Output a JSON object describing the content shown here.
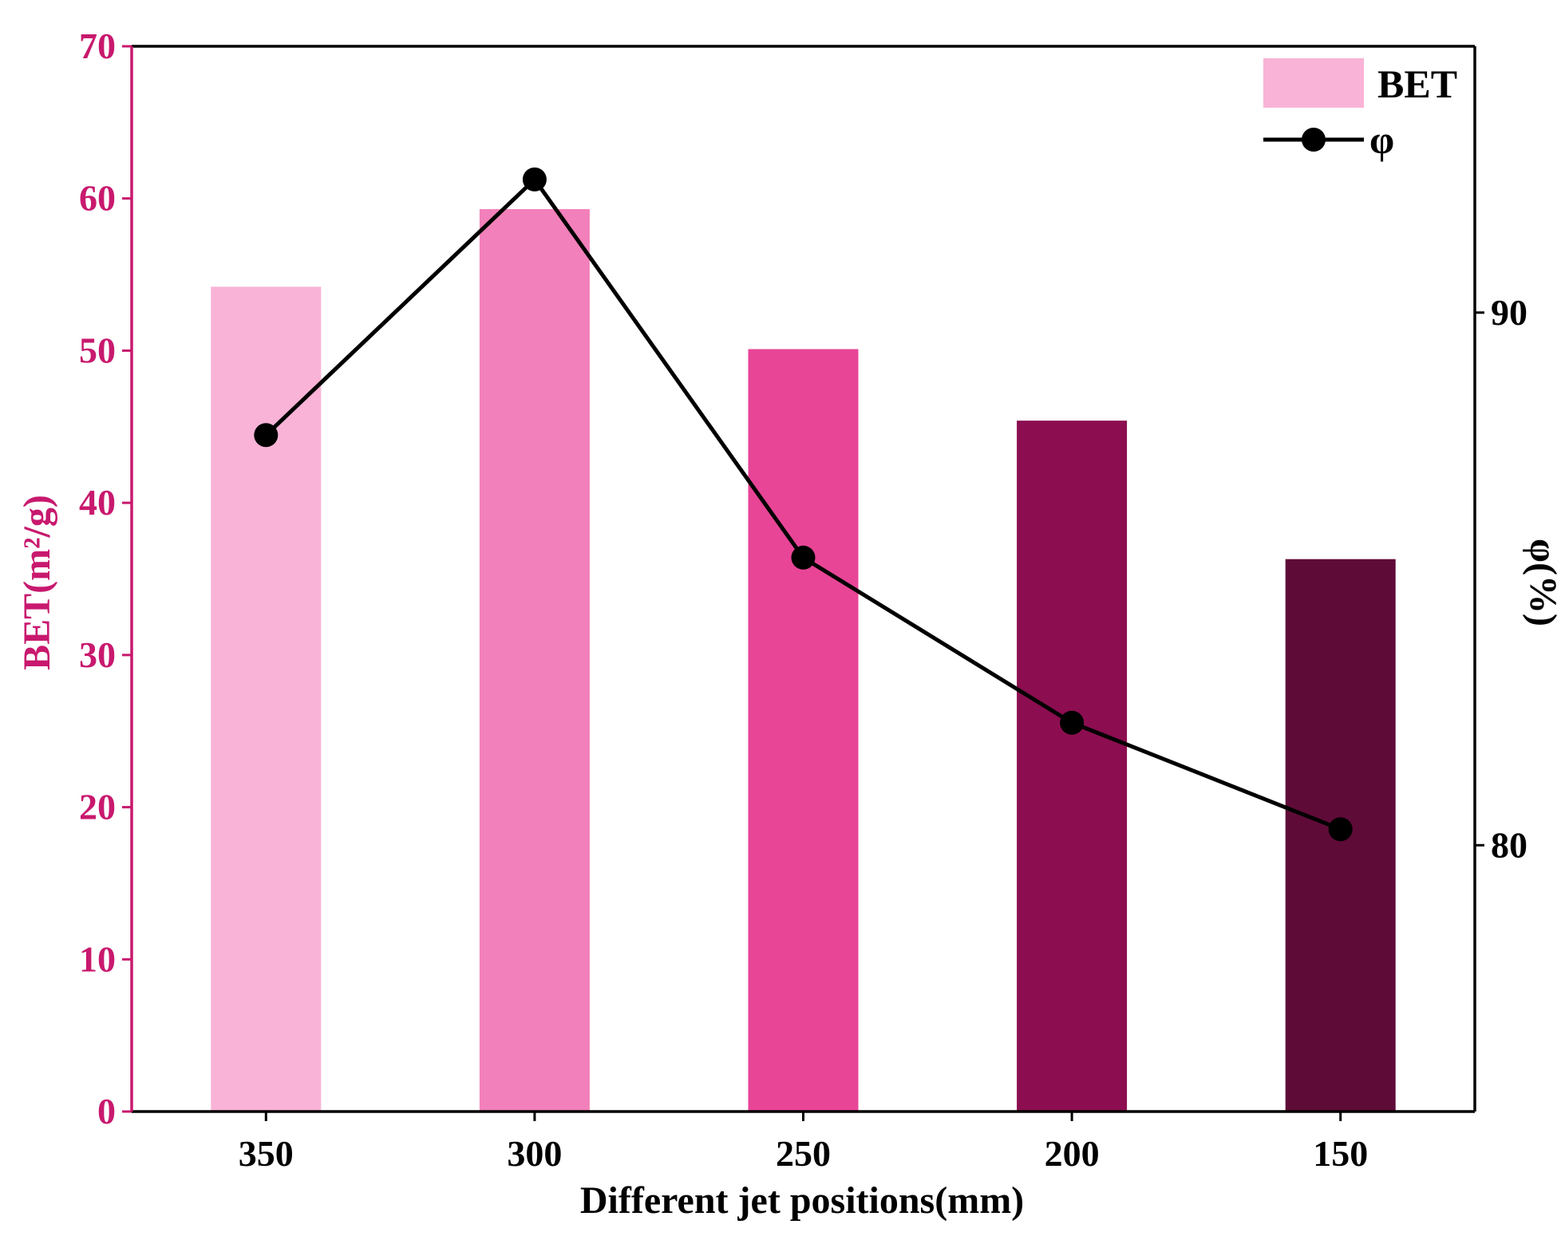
{
  "chart_data": {
    "type": "bar",
    "categories": [
      "350",
      "300",
      "250",
      "200",
      "150"
    ],
    "xlabel": "Different jet positions(mm)",
    "series": [
      {
        "name": "BET",
        "kind": "bar",
        "axis": "left",
        "values": [
          54.2,
          59.3,
          50.1,
          45.4,
          36.3
        ],
        "colors": [
          "#F9B3D6",
          "#F280BA",
          "#E84597",
          "#8C0E50",
          "#5F0B38"
        ]
      },
      {
        "name": "φ",
        "kind": "line",
        "axis": "right",
        "values": [
          87.7,
          92.5,
          85.4,
          82.3,
          80.3
        ],
        "color": "#000000"
      }
    ],
    "left_axis": {
      "label": "BET(m²/g)",
      "ylim": [
        0,
        70
      ],
      "ticks": [
        "0",
        "10",
        "20",
        "30",
        "40",
        "50",
        "60",
        "70"
      ],
      "color": "#C8196E"
    },
    "right_axis": {
      "label": "φ(%)",
      "ylim": [
        75,
        95
      ],
      "ticks": [
        "80",
        "90"
      ]
    },
    "legend": {
      "position": "top-right",
      "bar_label": "BET",
      "line_label": "φ",
      "bar_color": "#F9B3D6"
    },
    "grid": false
  }
}
